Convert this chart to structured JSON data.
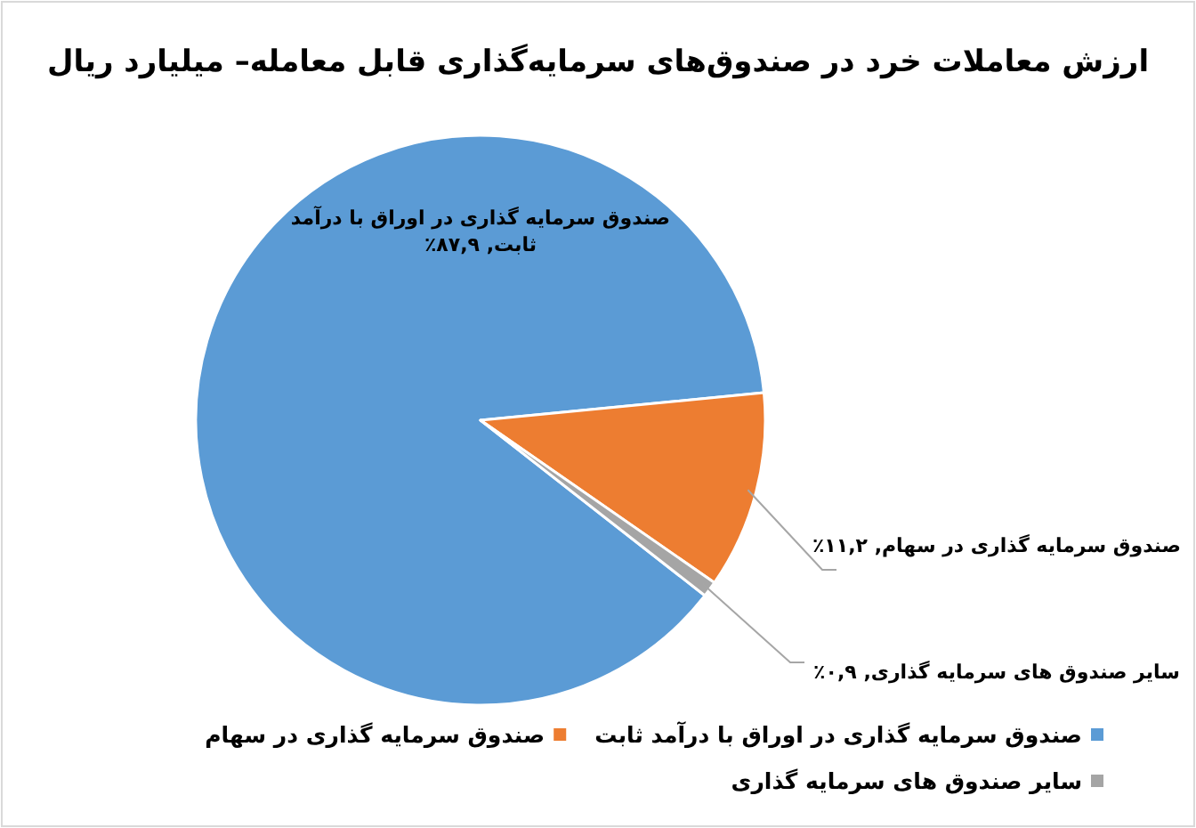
{
  "chart_data": {
    "type": "pie",
    "title": "ارزش معاملات خرد در صندوق‌های سرمایه‌گذاری قابل معامله– میلیارد ریال",
    "categories": [
      "صندوق سرمایه گذاری در اوراق با درآمد ثابت",
      "صندوق سرمایه گذاری در سهام",
      "سایر صندوق های سرمایه گذاری"
    ],
    "values": [
      87.9,
      11.2,
      0.9
    ],
    "value_labels": [
      "صندوق سرمایه گذاری در اوراق با درآمد ثابت, ۸۷,۹٪",
      "صندوق سرمایه گذاری در سهام, ۱۱,۲٪",
      "سایر صندوق های سرمایه گذاری, ۰,۹٪"
    ],
    "colors": [
      "#5b9bd5",
      "#ed7d31",
      "#a5a5a5"
    ],
    "legend": "bottom"
  }
}
